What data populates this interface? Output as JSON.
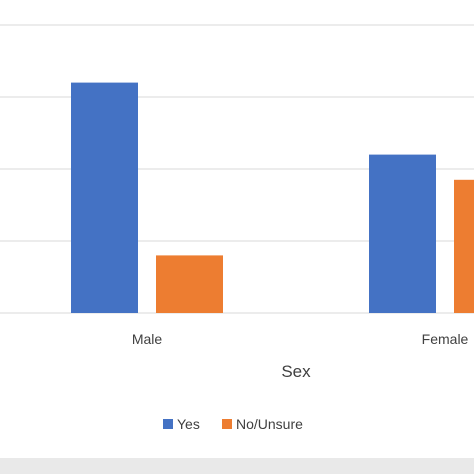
{
  "chart_data": {
    "type": "bar",
    "title": "",
    "xlabel": "Sex",
    "ylabel": "",
    "categories": [
      "Male",
      "Female"
    ],
    "series": [
      {
        "name": "Yes",
        "values": [
          3.2,
          2.2
        ],
        "color": "#4472c4"
      },
      {
        "name": "No/Unsure",
        "values": [
          0.8,
          1.85
        ],
        "color": "#ed7d31"
      }
    ],
    "ylim": [
      0,
      4
    ],
    "grid": true,
    "legend_position": "bottom"
  }
}
